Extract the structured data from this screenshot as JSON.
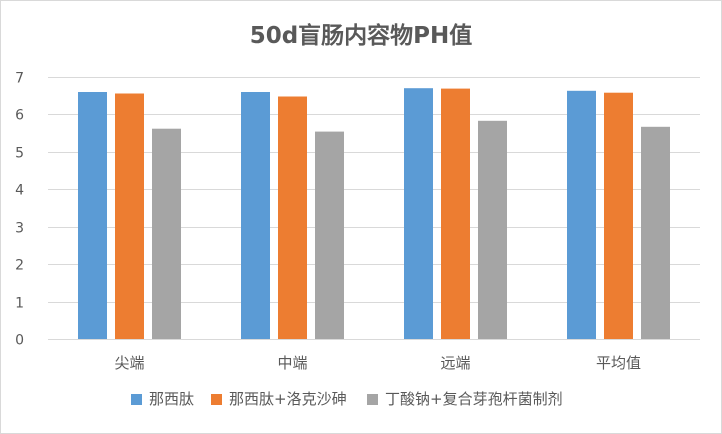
{
  "chart_data": {
    "type": "bar",
    "title": "50d盲肠内容物PH值",
    "xlabel": "",
    "ylabel": "",
    "ylim": [
      0,
      7
    ],
    "yticks": [
      0,
      1,
      2,
      3,
      4,
      5,
      6,
      7
    ],
    "grid": true,
    "legend_position": "bottom",
    "categories": [
      "尖端",
      "中端",
      "远端",
      "平均值"
    ],
    "series": [
      {
        "name": "那西肽",
        "color": "#5B9BD5",
        "values": [
          6.6,
          6.6,
          6.7,
          6.63
        ]
      },
      {
        "name": "那西肽+洛克沙砷",
        "color": "#ED7D31",
        "values": [
          6.56,
          6.48,
          6.69,
          6.58
        ]
      },
      {
        "name": "丁酸钠+复合芽孢杆菌制剂",
        "color": "#A5A5A5",
        "values": [
          5.62,
          5.54,
          5.83,
          5.67
        ]
      }
    ]
  }
}
